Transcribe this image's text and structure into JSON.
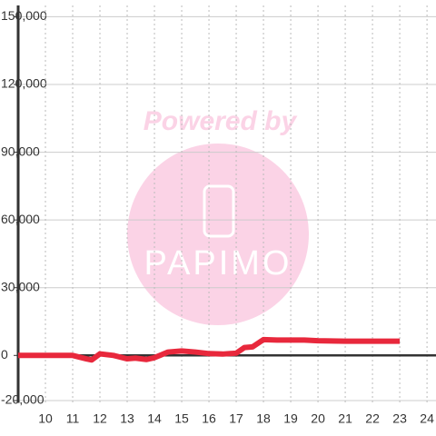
{
  "chart_data": {
    "type": "line",
    "x": [
      9,
      10,
      11,
      11.5,
      11.7,
      12,
      12.5,
      13,
      13.3,
      13.7,
      14,
      14.5,
      15,
      15.5,
      16,
      16.5,
      17,
      17.3,
      17.6,
      18,
      18.5,
      19,
      19.5,
      20,
      21,
      22,
      23
    ],
    "series": [
      {
        "name": null,
        "color": "#e8283c",
        "values": [
          0,
          0,
          0,
          -1500,
          -2000,
          700,
          0,
          -1500,
          -1200,
          -1800,
          -1000,
          1500,
          2000,
          1500,
          800,
          600,
          1000,
          3500,
          3800,
          7000,
          6800,
          6800,
          6800,
          6500,
          6300,
          6300,
          6300
        ]
      }
    ],
    "xlim": [
      9,
      24.33
    ],
    "xticks": [
      10,
      11,
      12,
      13,
      14,
      15,
      16,
      17,
      18,
      19,
      20,
      21,
      22,
      23,
      24
    ],
    "ylim": [
      -21000,
      155000
    ],
    "yticks": [
      {
        "value": -20000,
        "label": "-20,000"
      },
      {
        "value": 0,
        "label": "0"
      },
      {
        "value": 30000,
        "label": "30,000"
      },
      {
        "value": 60000,
        "label": "60,000"
      },
      {
        "value": 90000,
        "label": "90,000"
      },
      {
        "value": 120000,
        "label": "120,000"
      },
      {
        "value": 150000,
        "label": "150,000"
      }
    ],
    "grid": true,
    "watermark": {
      "text": "Powered by",
      "logo": "PAPIMO"
    }
  }
}
